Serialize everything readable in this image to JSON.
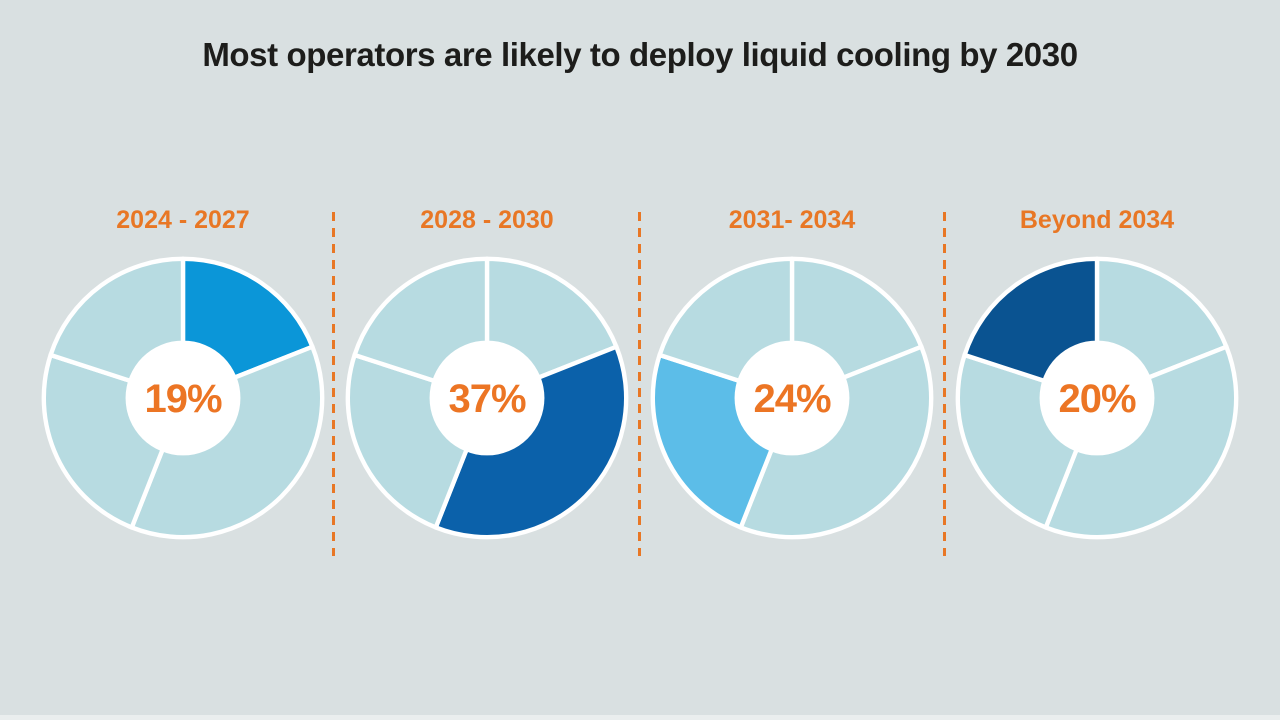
{
  "title": "Most operators are likely to deploy liquid cooling by 2030",
  "colors": {
    "background": "#d9e0e1",
    "title_text": "#1d1d1b",
    "accent_orange": "#e87725",
    "percent_orange": "#ec7524",
    "divider_orange": "#e87725",
    "segment_base": "#b7dbe1",
    "segment_stroke": "#ffffff"
  },
  "chart_data": {
    "type": "pie",
    "subtype": "donut-grid",
    "title": "Most operators are likely to deploy liquid cooling by 2030",
    "unit": "%",
    "segment_values": [
      19,
      37,
      24,
      20
    ],
    "segment_order": "clockwise from 12 o'clock",
    "inner_radius_ratio": 0.41,
    "base_segment_color": "#b7dbe1",
    "legend": "none",
    "charts": [
      {
        "label": "2024 - 2027",
        "value": 19,
        "value_label": "19%",
        "highlight_segment": 0,
        "highlight_color": "#0b96d8"
      },
      {
        "label": "2028 - 2030",
        "value": 37,
        "value_label": "37%",
        "highlight_segment": 1,
        "highlight_color": "#0b61aa"
      },
      {
        "label": "2031- 2034",
        "value": 24,
        "value_label": "24%",
        "highlight_segment": 2,
        "highlight_color": "#5cbde8"
      },
      {
        "label": "Beyond 2034",
        "value": 20,
        "value_label": "20%",
        "highlight_segment": 3,
        "highlight_color": "#0a5391"
      }
    ]
  }
}
